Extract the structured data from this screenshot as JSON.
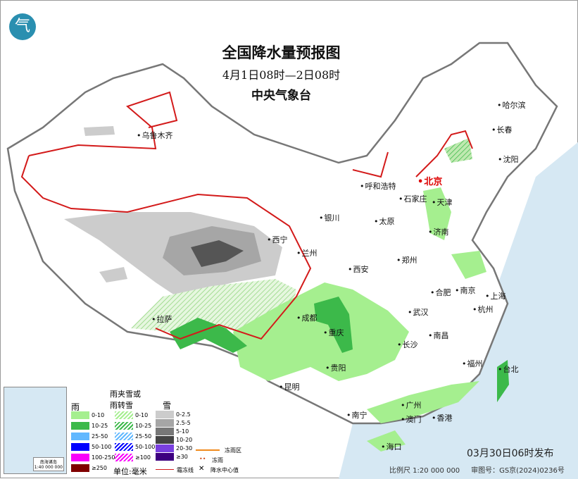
{
  "header": {
    "title": "全国降水量预报图",
    "period": "4月1日08时—2日08时",
    "issuer": "中央气象台",
    "logo_icon": "cma-logo-icon"
  },
  "cities": [
    {
      "name": "乌鲁木齐"
    },
    {
      "name": "哈尔滨"
    },
    {
      "name": "长春"
    },
    {
      "name": "沈阳"
    },
    {
      "name": "呼和浩特"
    },
    {
      "name": "北京",
      "capital": true
    },
    {
      "name": "天津"
    },
    {
      "name": "石家庄"
    },
    {
      "name": "太原"
    },
    {
      "name": "济南"
    },
    {
      "name": "银川"
    },
    {
      "name": "西宁"
    },
    {
      "name": "兰州"
    },
    {
      "name": "郑州"
    },
    {
      "name": "西安"
    },
    {
      "name": "合肥"
    },
    {
      "name": "南京"
    },
    {
      "name": "上海"
    },
    {
      "name": "杭州"
    },
    {
      "name": "拉萨"
    },
    {
      "name": "成都"
    },
    {
      "name": "重庆"
    },
    {
      "name": "武汉"
    },
    {
      "name": "南昌"
    },
    {
      "name": "长沙"
    },
    {
      "name": "福州"
    },
    {
      "name": "台北"
    },
    {
      "name": "贵阳"
    },
    {
      "name": "昆明"
    },
    {
      "name": "南宁"
    },
    {
      "name": "广州"
    },
    {
      "name": "澳门"
    },
    {
      "name": "香港"
    },
    {
      "name": "海口"
    }
  ],
  "legend": {
    "rain": {
      "title": "雨",
      "items": [
        {
          "label": "0-10",
          "color": "#a5ef8f"
        },
        {
          "label": "10-25",
          "color": "#3cb94a"
        },
        {
          "label": "25-50",
          "color": "#61b8ff"
        },
        {
          "label": "50-100",
          "color": "#0000fe"
        },
        {
          "label": "100-250",
          "color": "#fa00fa"
        },
        {
          "label": "≥250",
          "color": "#800000"
        }
      ]
    },
    "sleet": {
      "title": "雨夹雪或雨转雪",
      "items": [
        {
          "label": "0-10",
          "color": "#a5ef8f"
        },
        {
          "label": "10-25",
          "color": "#3cb94a"
        },
        {
          "label": "25-50",
          "color": "#61b8ff"
        },
        {
          "label": "50-100",
          "color": "#0000fe"
        },
        {
          "label": "≥100",
          "color": "#fa00fa"
        }
      ]
    },
    "snow": {
      "title": "雪",
      "items": [
        {
          "label": "0-2.5",
          "color": "#cccccc"
        },
        {
          "label": "2.5-5",
          "color": "#a6a6a6"
        },
        {
          "label": "5-10",
          "color": "#777777"
        },
        {
          "label": "10-20",
          "color": "#444444"
        },
        {
          "label": "20-30",
          "color": "#7a40e0"
        },
        {
          "label": "≥30",
          "color": "#3d0080"
        }
      ]
    },
    "unit": "单位:毫米",
    "symbols": [
      {
        "label": "冻雨区"
      },
      {
        "label": "冻雨"
      },
      {
        "label": "霜冻线"
      },
      {
        "label": "降水中心值"
      }
    ]
  },
  "inset": {
    "label": "南海诸岛",
    "scale": "1:40 000 000"
  },
  "issued": "03月30日06时发布",
  "footer": {
    "scale": "比例尺 1:20 000 000",
    "approval": "审图号：GS京(2024)0236号"
  }
}
